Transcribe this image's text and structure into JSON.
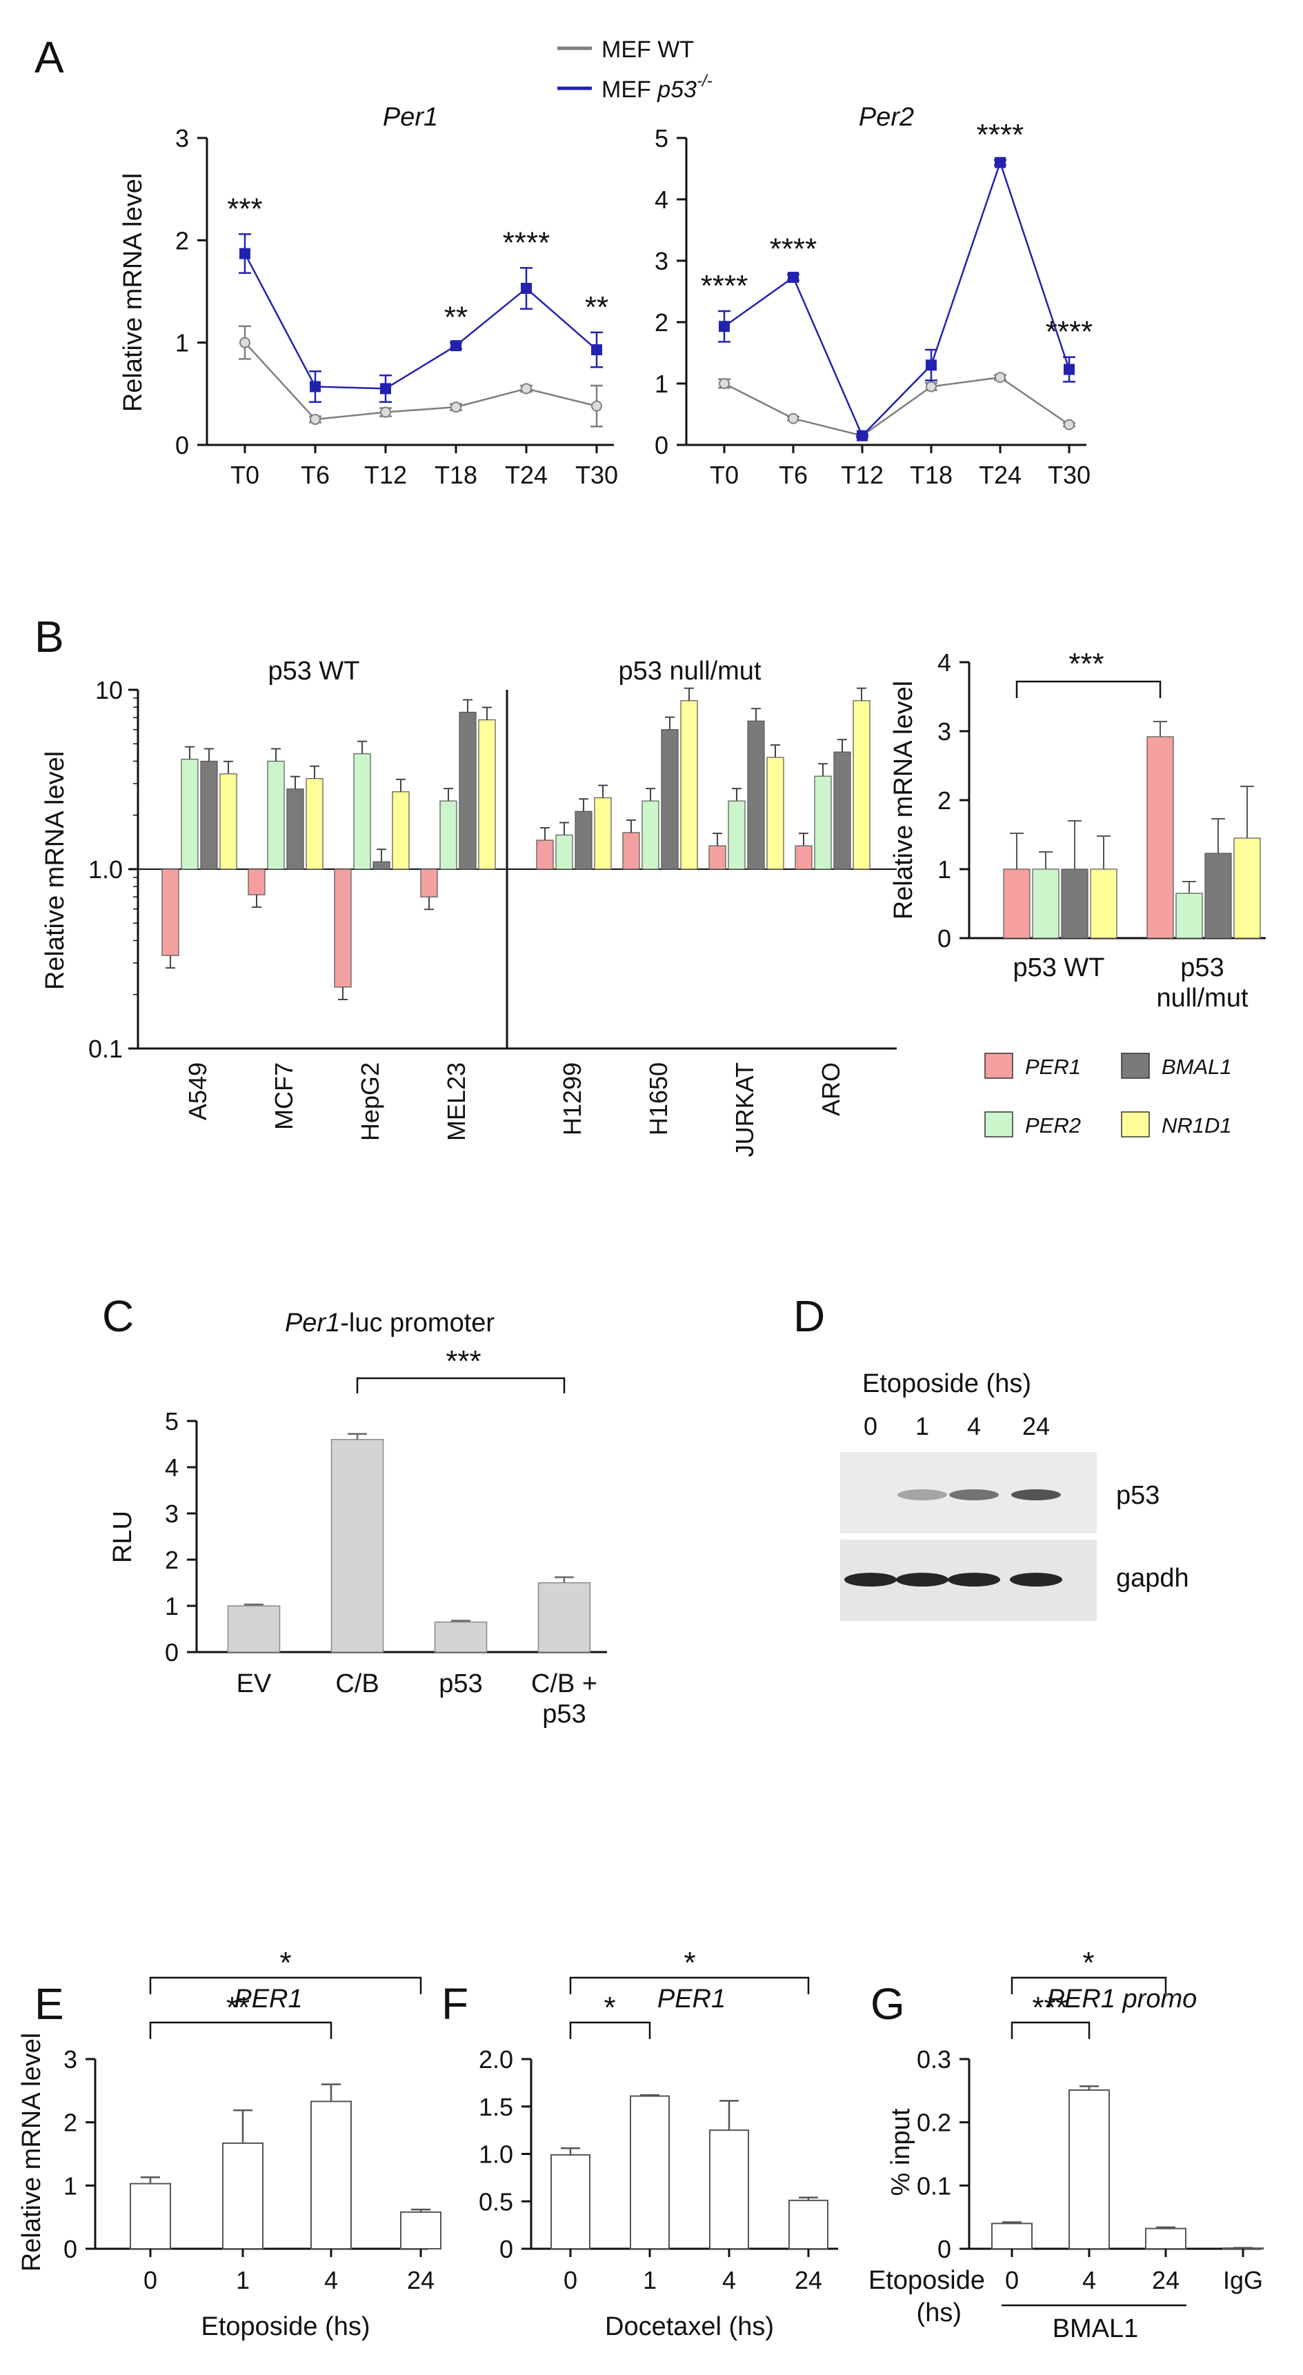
{
  "panel_labels": [
    "A",
    "B",
    "C",
    "D",
    "E",
    "F",
    "G"
  ],
  "colors": {
    "wt": "#7f7f7f",
    "ko": "#2222b0",
    "per1": "#f4a0a0",
    "per2": "#ccf5cc",
    "bmal1": "#7a7a7a",
    "nr1d1": "#ffff99",
    "gray_bar": "#d4d4d4",
    "white_bar": "#ffffff"
  },
  "chart_data": [
    {
      "id": "A-per1",
      "type": "line",
      "title": "Per1",
      "ylabel": "Relative mRNA level",
      "categories": [
        "T0",
        "T6",
        "T12",
        "T18",
        "T24",
        "T30"
      ],
      "yticks": [
        "0",
        "1",
        "2",
        "3"
      ],
      "ylim": [
        0,
        3
      ],
      "series": [
        {
          "name": "MEF WT",
          "values": [
            1.0,
            0.25,
            0.32,
            0.37,
            0.55,
            0.38
          ],
          "err": [
            0.16,
            0.03,
            0.04,
            0.03,
            0.03,
            0.2
          ]
        },
        {
          "name": "MEF p53-/-",
          "values": [
            1.87,
            0.57,
            0.55,
            0.97,
            1.53,
            0.93
          ],
          "err": [
            0.19,
            0.15,
            0.13,
            0.03,
            0.2,
            0.17
          ]
        }
      ],
      "stars": [
        "***",
        "",
        "",
        "**",
        "****",
        "**"
      ]
    },
    {
      "id": "A-per2",
      "type": "line",
      "title": "Per2",
      "categories": [
        "T0",
        "T6",
        "T12",
        "T18",
        "T24",
        "T30"
      ],
      "yticks": [
        "0",
        "1",
        "2",
        "3",
        "4",
        "5"
      ],
      "ylim": [
        0,
        5
      ],
      "series": [
        {
          "name": "MEF WT",
          "values": [
            1.0,
            0.43,
            0.15,
            0.95,
            1.1,
            0.33
          ],
          "err": [
            0.07,
            0.03,
            0.02,
            0.06,
            0.04,
            0.03
          ]
        },
        {
          "name": "MEF p53-/-",
          "values": [
            1.93,
            2.73,
            0.15,
            1.3,
            4.6,
            1.23
          ],
          "err": [
            0.25,
            0.05,
            0.02,
            0.25,
            0.04,
            0.2
          ]
        }
      ],
      "stars": [
        "****",
        "****",
        "",
        "",
        "****",
        "****"
      ]
    },
    {
      "id": "B-cells",
      "type": "bar",
      "yscale": "log",
      "ylabel": "Relative mRNA level",
      "yticks": [
        "0.1",
        "1.0",
        "10"
      ],
      "groups": [
        {
          "title": "p53 WT",
          "categories": [
            "A549",
            "MCF7",
            "HepG2",
            "MEL23"
          ]
        },
        {
          "title": "p53 null/mut",
          "categories": [
            "H1299",
            "H1650",
            "JURKAT",
            "ARO"
          ]
        }
      ],
      "series": [
        {
          "name": "PER1",
          "values": [
            0.33,
            0.72,
            0.22,
            0.7,
            1.45,
            1.6,
            1.35,
            1.35
          ]
        },
        {
          "name": "PER2",
          "values": [
            4.1,
            4.0,
            4.4,
            2.4,
            1.55,
            2.4,
            2.4,
            3.3
          ]
        },
        {
          "name": "BMAL1",
          "values": [
            4.0,
            2.8,
            1.1,
            7.5,
            2.1,
            6.0,
            6.7,
            4.5
          ]
        },
        {
          "name": "NR1D1",
          "values": [
            3.4,
            3.2,
            2.7,
            6.8,
            2.5,
            8.7,
            4.2,
            8.7
          ]
        }
      ]
    },
    {
      "id": "B-summary",
      "type": "bar",
      "ylabel": "Relative mRNA level",
      "yticks": [
        "0",
        "1",
        "2",
        "3",
        "4"
      ],
      "ylim": [
        0,
        4
      ],
      "categories": [
        "p53 WT",
        "p53 null/mut"
      ],
      "category_lines": [
        [
          "p53 WT"
        ],
        [
          "p53",
          "null/mut"
        ]
      ],
      "series": [
        {
          "name": "PER1",
          "values": [
            1.0,
            2.92
          ],
          "err": [
            0.52,
            0.22
          ]
        },
        {
          "name": "PER2",
          "values": [
            1.0,
            0.65
          ],
          "err": [
            0.25,
            0.17
          ]
        },
        {
          "name": "BMAL1",
          "values": [
            1.0,
            1.23
          ],
          "err": [
            0.7,
            0.5
          ]
        },
        {
          "name": "NR1D1",
          "values": [
            1.0,
            1.45
          ],
          "err": [
            0.48,
            0.75
          ]
        }
      ],
      "significance": "***",
      "legend": [
        "PER1",
        "BMAL1",
        "PER2",
        "NR1D1"
      ]
    },
    {
      "id": "C",
      "type": "bar",
      "title_italic": "Per1",
      "title_rest": "-luc promoter",
      "ylabel": "RLU",
      "yticks": [
        "0",
        "1",
        "2",
        "3",
        "4",
        "5"
      ],
      "ylim": [
        0,
        5
      ],
      "categories": [
        "EV",
        "C/B",
        "p53",
        "C/B +"
      ],
      "category_sub": [
        "",
        "",
        "",
        "p53"
      ],
      "values": [
        1.0,
        4.6,
        0.65,
        1.5
      ],
      "err": [
        0.03,
        0.12,
        0.03,
        0.12
      ],
      "significance": "***"
    },
    {
      "id": "E",
      "type": "bar",
      "title": "PER1",
      "ylabel": "Relative mRNA level",
      "xlabel": "Etoposide (hs)",
      "yticks": [
        "0",
        "1",
        "2",
        "3"
      ],
      "ylim": [
        0,
        3
      ],
      "categories": [
        "0",
        "1",
        "4",
        "24"
      ],
      "values": [
        1.03,
        1.67,
        2.33,
        0.58
      ],
      "err": [
        0.1,
        0.52,
        0.27,
        0.04
      ],
      "significance": [
        "*",
        "**"
      ]
    },
    {
      "id": "F",
      "type": "bar",
      "title": "PER1",
      "xlabel": "Docetaxel (hs)",
      "yticks": [
        "0",
        "0.5",
        "1.0",
        "1.5",
        "2.0"
      ],
      "ylim": [
        0,
        2
      ],
      "categories": [
        "0",
        "1",
        "4",
        "24"
      ],
      "values": [
        0.99,
        1.61,
        1.25,
        0.51
      ],
      "err": [
        0.07,
        0.01,
        0.31,
        0.03
      ],
      "significance": [
        "*",
        "*"
      ]
    },
    {
      "id": "G",
      "type": "bar",
      "title": "PER1 promo",
      "ylabel": "% input",
      "yticks": [
        "0",
        "0.1",
        "0.2",
        "0.3"
      ],
      "ylim": [
        0,
        0.3
      ],
      "categories": [
        "0",
        "4",
        "24",
        "IgG"
      ],
      "values": [
        0.04,
        0.251,
        0.032,
        0.001
      ],
      "err": [
        0.002,
        0.006,
        0.002,
        0.0005
      ],
      "row_label_1": "Etoposide",
      "row_label_2": "(hs)",
      "group_label": "BMAL1",
      "significance": [
        "*",
        "***"
      ]
    }
  ],
  "blot": {
    "title": "Etoposide (hs)",
    "lanes": [
      "0",
      "1",
      "4",
      "24"
    ],
    "rows": [
      "p53",
      "gapdh"
    ]
  }
}
